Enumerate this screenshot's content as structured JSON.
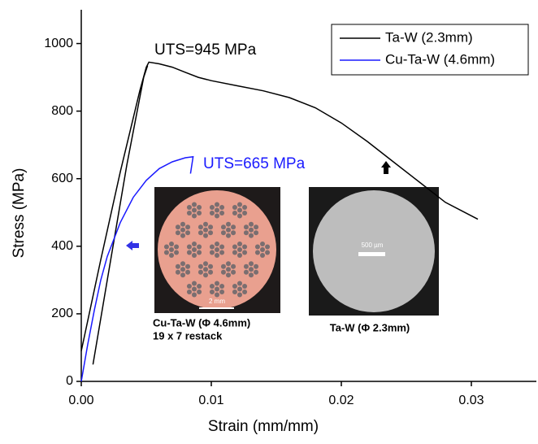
{
  "chart_data": {
    "type": "line",
    "xlabel": "Strain (mm/mm)",
    "ylabel": "Stress (MPa)",
    "xlim": [
      0,
      0.035
    ],
    "ylim": [
      0,
      1100
    ],
    "xticks": [
      {
        "value": 0,
        "label": "0.00"
      },
      0.01,
      0.02,
      0.03
    ],
    "yticks": [
      0,
      200,
      400,
      600,
      800,
      1000
    ],
    "legend": "upper right",
    "series": [
      {
        "name": "Ta-W (2.3mm)",
        "color": "#000000",
        "x": [
          0.0009,
          0.002,
          0.0035,
          0.0048,
          0.0051,
          null,
          0,
          0.0015,
          0.003,
          0.0045,
          0.005,
          0.0052,
          0.006,
          0.007,
          0.008,
          0.009,
          0.01,
          0.012,
          0.014,
          0.016,
          0.018,
          0.02,
          0.022,
          0.024,
          0.026,
          0.028,
          0.0305
        ],
        "values": [
          50,
          300,
          640,
          900,
          935,
          null,
          90,
          360,
          620,
          860,
          930,
          945,
          940,
          930,
          915,
          900,
          890,
          875,
          860,
          840,
          810,
          765,
          710,
          650,
          590,
          530,
          480
        ]
      },
      {
        "name": "Cu-Ta-W (4.6mm)",
        "color": "#1a1aff",
        "x": [
          0,
          0.0005,
          0.001,
          0.0015,
          0.002,
          0.003,
          0.004,
          0.005,
          0.006,
          0.007,
          0.008,
          0.0086,
          0.0084
        ],
        "values": [
          0,
          110,
          210,
          300,
          370,
          470,
          545,
          595,
          630,
          650,
          662,
          665,
          615
        ]
      }
    ],
    "annotations": [
      "UTS=945 MPa",
      "UTS=665 MPa"
    ],
    "insets": [
      {
        "caption": [
          "Cu-Ta-W (Φ 4.6mm)",
          "19 x 7 restack"
        ],
        "scale": "2 mm"
      },
      {
        "caption": [
          "Ta-W (Φ 2.3mm)"
        ],
        "scale": "500 µm"
      }
    ]
  }
}
